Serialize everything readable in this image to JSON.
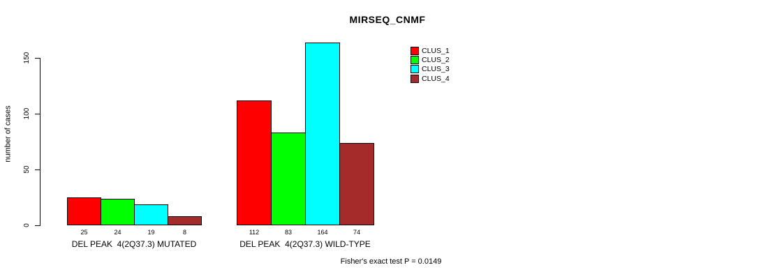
{
  "chart_data": {
    "type": "bar",
    "title": "MIRSEQ_CNMF",
    "ylabel": "number of cases",
    "xlabel": "",
    "yticks": [
      0,
      50,
      100,
      150
    ],
    "ylim": [
      0,
      170
    ],
    "grid": false,
    "legend_position": "top-right",
    "categories": [
      "DEL PEAK  4(2Q37.3) MUTATED",
      "DEL PEAK  4(2Q37.3) WILD-TYPE"
    ],
    "series": [
      {
        "name": "CLUS_1",
        "color": "#FF0000",
        "values": [
          25,
          112
        ]
      },
      {
        "name": "CLUS_2",
        "color": "#00FF00",
        "values": [
          24,
          83
        ]
      },
      {
        "name": "CLUS_3",
        "color": "#00FFFF",
        "values": [
          19,
          164
        ]
      },
      {
        "name": "CLUS_4",
        "color": "#A52A2A",
        "values": [
          8,
          74
        ]
      }
    ],
    "bar_value_labels": [
      [
        "25",
        "24",
        "19",
        "8"
      ],
      [
        "112",
        "83",
        "164",
        "74"
      ]
    ],
    "annotation": "Fisher's exact test P = 0.0149"
  }
}
